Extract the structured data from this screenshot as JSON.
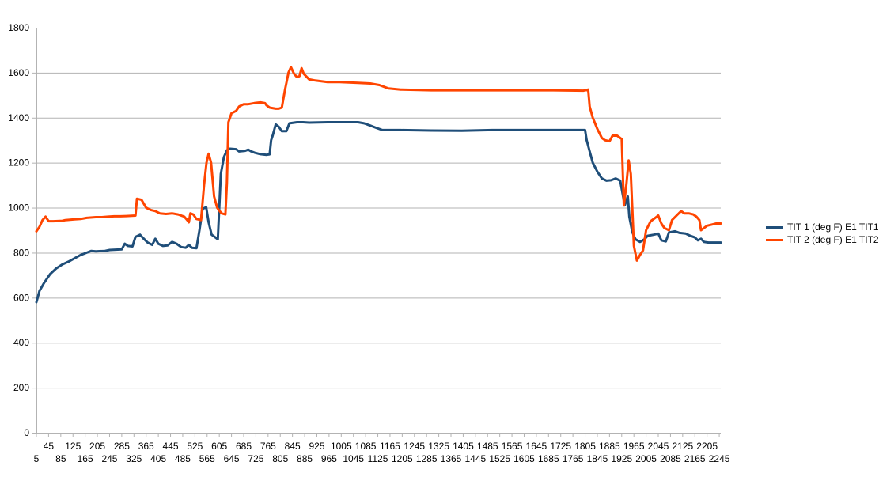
{
  "chart_data": {
    "type": "line",
    "title": "",
    "xlabel": "",
    "ylabel": "",
    "ylim": [
      0,
      1800
    ],
    "yticks": [
      0,
      200,
      400,
      600,
      800,
      1000,
      1200,
      1400,
      1600,
      1800
    ],
    "xlim": [
      5,
      2250
    ],
    "xticks_top": [
      "45",
      "125",
      "205",
      "285",
      "365",
      "445",
      "525",
      "605",
      "685",
      "765",
      "845",
      "925",
      "1005",
      "1085",
      "1165",
      "1245",
      "1325",
      "1405",
      "1485",
      "1565",
      "1645",
      "1725",
      "1805",
      "1885",
      "1965",
      "2045",
      "2125",
      "2205"
    ],
    "xticks_bottom": [
      "5",
      "85",
      "165",
      "245",
      "325",
      "405",
      "485",
      "565",
      "645",
      "725",
      "805",
      "885",
      "965",
      "1045",
      "1125",
      "1205",
      "1285",
      "1365",
      "1445",
      "1525",
      "1605",
      "1685",
      "1765",
      "1845",
      "1925",
      "2005",
      "2085",
      "2165",
      "2245"
    ],
    "grid": true,
    "legend_position": "right",
    "series": [
      {
        "name": "TIT 1 (deg F) E1 TIT1",
        "color": "#1f4e79",
        "points": [
          [
            5,
            580
          ],
          [
            15,
            630
          ],
          [
            30,
            665
          ],
          [
            50,
            705
          ],
          [
            70,
            730
          ],
          [
            90,
            748
          ],
          [
            110,
            760
          ],
          [
            130,
            775
          ],
          [
            150,
            790
          ],
          [
            170,
            800
          ],
          [
            185,
            808
          ],
          [
            200,
            806
          ],
          [
            230,
            808
          ],
          [
            245,
            812
          ],
          [
            285,
            815
          ],
          [
            295,
            840
          ],
          [
            305,
            830
          ],
          [
            320,
            828
          ],
          [
            330,
            870
          ],
          [
            345,
            880
          ],
          [
            355,
            865
          ],
          [
            370,
            845
          ],
          [
            385,
            835
          ],
          [
            395,
            862
          ],
          [
            405,
            840
          ],
          [
            420,
            830
          ],
          [
            435,
            832
          ],
          [
            450,
            848
          ],
          [
            465,
            840
          ],
          [
            480,
            825
          ],
          [
            495,
            822
          ],
          [
            505,
            835
          ],
          [
            515,
            822
          ],
          [
            530,
            820
          ],
          [
            540,
            900
          ],
          [
            550,
            995
          ],
          [
            562,
            1002
          ],
          [
            570,
            935
          ],
          [
            580,
            880
          ],
          [
            590,
            870
          ],
          [
            600,
            860
          ],
          [
            610,
            1150
          ],
          [
            620,
            1225
          ],
          [
            630,
            1255
          ],
          [
            640,
            1262
          ],
          [
            660,
            1260
          ],
          [
            670,
            1250
          ],
          [
            690,
            1253
          ],
          [
            700,
            1258
          ],
          [
            710,
            1250
          ],
          [
            720,
            1245
          ],
          [
            740,
            1238
          ],
          [
            760,
            1235
          ],
          [
            770,
            1237
          ],
          [
            775,
            1300
          ],
          [
            780,
            1320
          ],
          [
            790,
            1370
          ],
          [
            800,
            1360
          ],
          [
            810,
            1340
          ],
          [
            825,
            1340
          ],
          [
            835,
            1375
          ],
          [
            860,
            1380
          ],
          [
            880,
            1380
          ],
          [
            900,
            1378
          ],
          [
            960,
            1380
          ],
          [
            1020,
            1380
          ],
          [
            1060,
            1380
          ],
          [
            1080,
            1375
          ],
          [
            1100,
            1365
          ],
          [
            1120,
            1355
          ],
          [
            1140,
            1345
          ],
          [
            1200,
            1345
          ],
          [
            1300,
            1343
          ],
          [
            1400,
            1342
          ],
          [
            1500,
            1345
          ],
          [
            1600,
            1345
          ],
          [
            1700,
            1345
          ],
          [
            1805,
            1345
          ],
          [
            1810,
            1300
          ],
          [
            1820,
            1250
          ],
          [
            1830,
            1200
          ],
          [
            1845,
            1160
          ],
          [
            1860,
            1130
          ],
          [
            1875,
            1120
          ],
          [
            1890,
            1122
          ],
          [
            1905,
            1130
          ],
          [
            1920,
            1120
          ],
          [
            1935,
            1010
          ],
          [
            1945,
            1050
          ],
          [
            1950,
            960
          ],
          [
            1960,
            890
          ],
          [
            1970,
            860
          ],
          [
            1985,
            848
          ],
          [
            2000,
            860
          ],
          [
            2010,
            875
          ],
          [
            2030,
            880
          ],
          [
            2045,
            885
          ],
          [
            2055,
            855
          ],
          [
            2070,
            850
          ],
          [
            2080,
            890
          ],
          [
            2100,
            895
          ],
          [
            2115,
            888
          ],
          [
            2135,
            885
          ],
          [
            2150,
            875
          ],
          [
            2165,
            868
          ],
          [
            2175,
            855
          ],
          [
            2185,
            862
          ],
          [
            2195,
            848
          ],
          [
            2210,
            845
          ],
          [
            2250,
            845
          ]
        ]
      },
      {
        "name": "TIT 2 (deg F) E1 TIT2",
        "color": "#ff4500",
        "points": [
          [
            5,
            895
          ],
          [
            15,
            915
          ],
          [
            25,
            945
          ],
          [
            35,
            960
          ],
          [
            45,
            940
          ],
          [
            60,
            940
          ],
          [
            90,
            942
          ],
          [
            100,
            945
          ],
          [
            130,
            948
          ],
          [
            150,
            950
          ],
          [
            170,
            955
          ],
          [
            200,
            958
          ],
          [
            220,
            958
          ],
          [
            240,
            960
          ],
          [
            260,
            962
          ],
          [
            280,
            962
          ],
          [
            300,
            963
          ],
          [
            330,
            965
          ],
          [
            335,
            1040
          ],
          [
            350,
            1035
          ],
          [
            365,
            1000
          ],
          [
            380,
            990
          ],
          [
            395,
            985
          ],
          [
            410,
            975
          ],
          [
            430,
            972
          ],
          [
            450,
            975
          ],
          [
            470,
            970
          ],
          [
            490,
            960
          ],
          [
            500,
            945
          ],
          [
            505,
            935
          ],
          [
            510,
            975
          ],
          [
            520,
            970
          ],
          [
            530,
            950
          ],
          [
            545,
            945
          ],
          [
            555,
            1100
          ],
          [
            563,
            1200
          ],
          [
            570,
            1240
          ],
          [
            578,
            1200
          ],
          [
            588,
            1050
          ],
          [
            598,
            1000
          ],
          [
            612,
            975
          ],
          [
            625,
            970
          ],
          [
            630,
            1110
          ],
          [
            635,
            1380
          ],
          [
            645,
            1420
          ],
          [
            660,
            1430
          ],
          [
            670,
            1450
          ],
          [
            685,
            1460
          ],
          [
            700,
            1460
          ],
          [
            720,
            1465
          ],
          [
            740,
            1468
          ],
          [
            755,
            1465
          ],
          [
            760,
            1455
          ],
          [
            770,
            1445
          ],
          [
            790,
            1440
          ],
          [
            800,
            1440
          ],
          [
            810,
            1445
          ],
          [
            820,
            1520
          ],
          [
            832,
            1600
          ],
          [
            840,
            1625
          ],
          [
            850,
            1595
          ],
          [
            860,
            1580
          ],
          [
            868,
            1585
          ],
          [
            875,
            1620
          ],
          [
            882,
            1595
          ],
          [
            900,
            1570
          ],
          [
            920,
            1565
          ],
          [
            960,
            1558
          ],
          [
            1000,
            1558
          ],
          [
            1060,
            1555
          ],
          [
            1100,
            1552
          ],
          [
            1130,
            1545
          ],
          [
            1160,
            1530
          ],
          [
            1200,
            1525
          ],
          [
            1300,
            1522
          ],
          [
            1400,
            1522
          ],
          [
            1500,
            1522
          ],
          [
            1600,
            1522
          ],
          [
            1700,
            1522
          ],
          [
            1800,
            1520
          ],
          [
            1815,
            1525
          ],
          [
            1820,
            1450
          ],
          [
            1830,
            1400
          ],
          [
            1845,
            1350
          ],
          [
            1860,
            1310
          ],
          [
            1870,
            1300
          ],
          [
            1885,
            1295
          ],
          [
            1895,
            1320
          ],
          [
            1910,
            1320
          ],
          [
            1925,
            1305
          ],
          [
            1932,
            1010
          ],
          [
            1940,
            1100
          ],
          [
            1948,
            1210
          ],
          [
            1955,
            1150
          ],
          [
            1965,
            830
          ],
          [
            1975,
            765
          ],
          [
            1985,
            790
          ],
          [
            1995,
            810
          ],
          [
            2005,
            900
          ],
          [
            2020,
            940
          ],
          [
            2035,
            955
          ],
          [
            2045,
            965
          ],
          [
            2055,
            930
          ],
          [
            2065,
            910
          ],
          [
            2080,
            900
          ],
          [
            2090,
            945
          ],
          [
            2105,
            965
          ],
          [
            2120,
            985
          ],
          [
            2130,
            975
          ],
          [
            2145,
            975
          ],
          [
            2160,
            970
          ],
          [
            2170,
            960
          ],
          [
            2180,
            945
          ],
          [
            2185,
            900
          ],
          [
            2195,
            910
          ],
          [
            2205,
            920
          ],
          [
            2220,
            925
          ],
          [
            2235,
            930
          ],
          [
            2250,
            930
          ]
        ]
      }
    ]
  }
}
